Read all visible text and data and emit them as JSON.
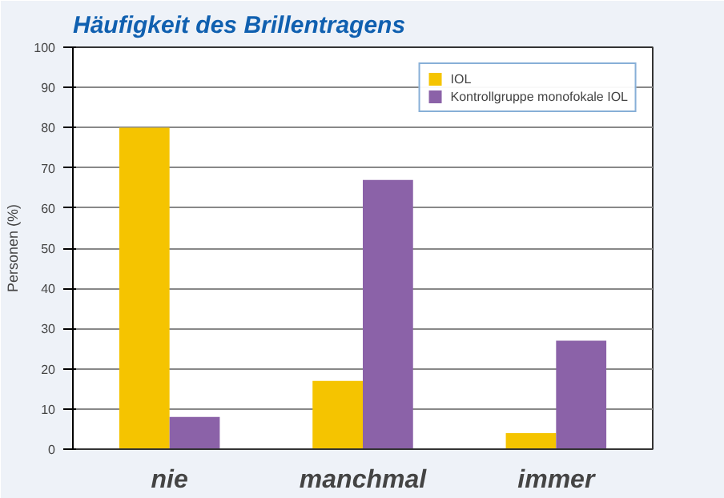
{
  "chart_data": {
    "type": "bar",
    "title": "Häufigkeit des Brillentragens",
    "ylabel": "Personen (%)",
    "categories": [
      "nie",
      "manchmal",
      "immer"
    ],
    "series": [
      {
        "name": "IOL",
        "color": "#f5c400",
        "values": [
          80,
          17,
          4
        ]
      },
      {
        "name": "Kontrollgruppe monofokale IOL",
        "color": "#8b62a8",
        "values": [
          8,
          67,
          27
        ]
      }
    ],
    "ylim": [
      0,
      100
    ],
    "yticks": [
      0,
      10,
      20,
      30,
      40,
      50,
      60,
      70,
      80,
      90,
      100
    ],
    "grid": "y",
    "legend": "top right"
  }
}
